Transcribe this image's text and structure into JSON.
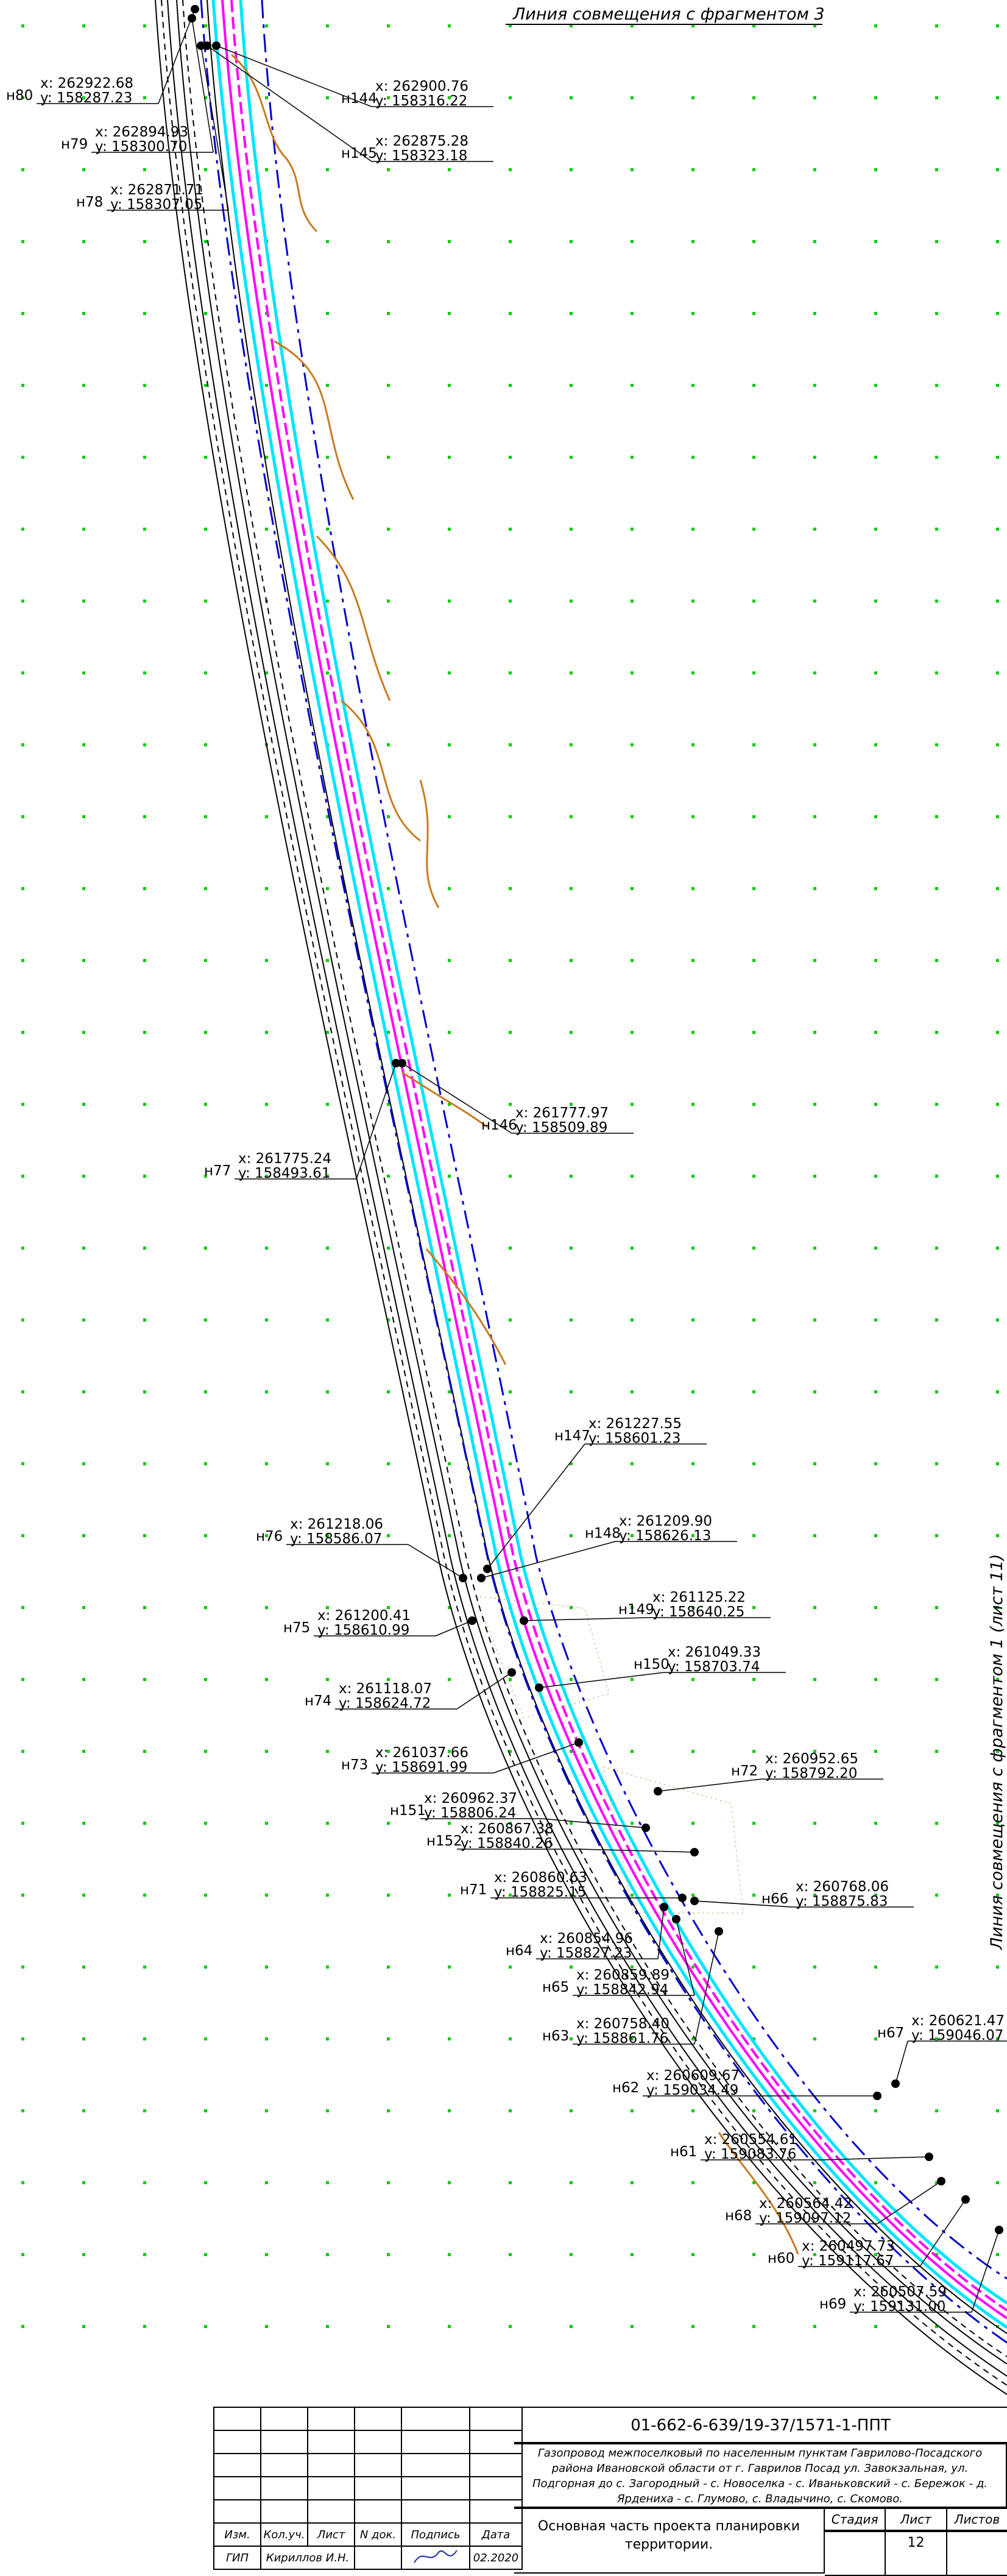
{
  "notes": {
    "top_right": "Линия совмещения с фрагментом 3",
    "right_vertical": "Линия совмещения с фрагментом 1 (лист 11)"
  },
  "points": [
    {
      "name": "н80",
      "x": "x: 262922.68",
      "y": "y: 158287.23"
    },
    {
      "name": "н79",
      "x": "x: 262894.93",
      "y": "y: 158300.70"
    },
    {
      "name": "н78",
      "x": "x: 262871.71",
      "y": "y: 158307.05"
    },
    {
      "name": "н144",
      "x": "x: 262900.76",
      "y": "y: 158316.22"
    },
    {
      "name": "н145",
      "x": "x: 262875.28",
      "y": "y: 158323.18"
    },
    {
      "name": "н77",
      "x": "x: 261775.24",
      "y": "y: 158493.61"
    },
    {
      "name": "н146",
      "x": "x: 261777.97",
      "y": "y: 158509.89"
    },
    {
      "name": "н147",
      "x": "x: 261227.55",
      "y": "y: 158601.23"
    },
    {
      "name": "н148",
      "x": "x: 261209.90",
      "y": "y: 158626.13"
    },
    {
      "name": "н76",
      "x": "x: 261218.06",
      "y": "y: 158586.07"
    },
    {
      "name": "н75",
      "x": "x: 261200.41",
      "y": "y: 158610.99"
    },
    {
      "name": "н149",
      "x": "x: 261125.22",
      "y": "y: 158640.25"
    },
    {
      "name": "н150",
      "x": "x: 261049.33",
      "y": "y: 158703.74"
    },
    {
      "name": "н74",
      "x": "x: 261118.07",
      "y": "y: 158624.72"
    },
    {
      "name": "н73",
      "x": "x: 261037.66",
      "y": "y: 158691.99"
    },
    {
      "name": "н72",
      "x": "x: 260952.65",
      "y": "y: 158792.20"
    },
    {
      "name": "н151",
      "x": "x: 260962.37",
      "y": "y: 158806.24"
    },
    {
      "name": "н152",
      "x": "x: 260867.38",
      "y": "y: 158840.26"
    },
    {
      "name": "н71",
      "x": "x: 260860.63",
      "y": "y: 158825.15"
    },
    {
      "name": "н66",
      "x": "x: 260768.06",
      "y": "y: 158875.83"
    },
    {
      "name": "н64",
      "x": "x: 260854.96",
      "y": "y: 158827.23"
    },
    {
      "name": "н65",
      "x": "x: 260859.89",
      "y": "y: 158842.94"
    },
    {
      "name": "н63",
      "x": "x: 260758.40",
      "y": "y: 158861.76"
    },
    {
      "name": "н67",
      "x": "x: 260621.47",
      "y": "y: 159046.07"
    },
    {
      "name": "н62",
      "x": "x: 260609.67",
      "y": "y: 159034.49"
    },
    {
      "name": "н61",
      "x": "x: 260554.61",
      "y": "y: 159083.76"
    },
    {
      "name": "н68",
      "x": "x: 260564.42",
      "y": "y: 159097.12"
    },
    {
      "name": "н60",
      "x": "x: 260497.73",
      "y": "y: 159117.67"
    },
    {
      "name": "н69",
      "x": "x: 260507.59",
      "y": "y: 159131.00"
    }
  ],
  "stamp": {
    "headers": [
      "Изм.",
      "Кол.уч.",
      "Лист",
      "N док.",
      "Подпись",
      "Дата"
    ],
    "row_gip": {
      "role": "ГИП",
      "name": "Кириллов И.Н.",
      "date": "02.2020"
    },
    "doc_code": "01-662-6-639/19-37/1571-1-ППТ",
    "project_title": "Газопровод межпоселковый по населенным пунктам Гаврилово-Посадского района Ивановской области от г. Гаврилов Посад ул. Завокзальная, ул. Подгорная до с. Загородный - с. Новоселка - с. Иваньковский - с. Бережок - д. Ярдениха - с. Глумово, с. Владычино, с. Скомово.",
    "section_title": "Основная часть проекта планировки территории.",
    "stage_headers": [
      "Стадия",
      "Лист",
      "Листов"
    ],
    "sheet_number": "12"
  },
  "colors": {
    "pipe": "#ff00ff",
    "protect_zone": "#00e5ff",
    "boundary": "#0000cc",
    "contour": "#c87a1e",
    "grid_marks": "#00cc00"
  }
}
